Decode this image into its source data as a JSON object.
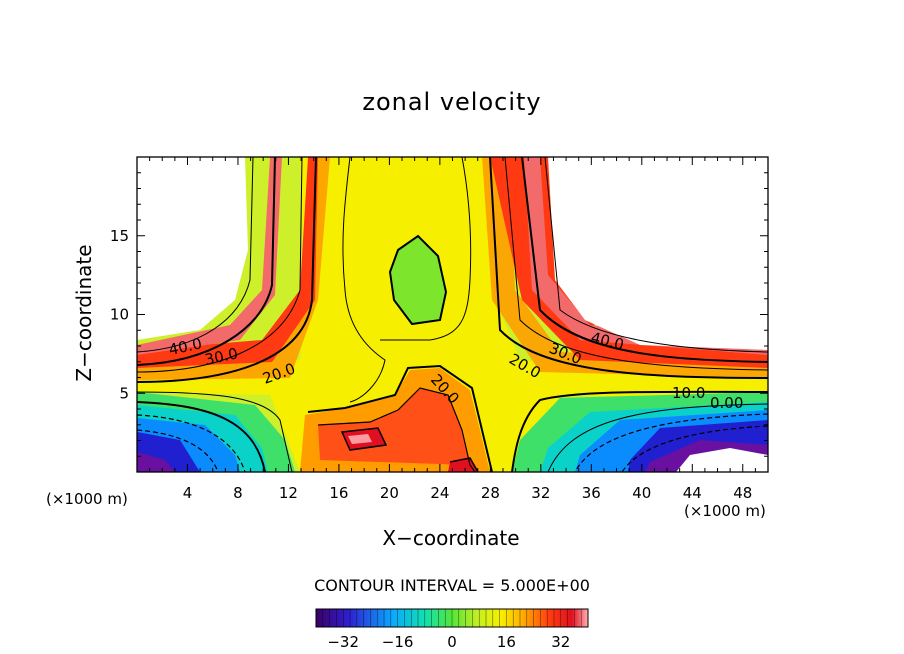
{
  "chart_data": {
    "type": "heatmap",
    "title": "zonal velocity",
    "xlabel": "X−coordinate",
    "ylabel": "Z−coordinate",
    "x_unit_left": "(×1000 m)",
    "x_unit_right": "(×1000 m)",
    "xlim": [
      0,
      50
    ],
    "ylim": [
      0,
      20
    ],
    "x_ticks": [
      4,
      8,
      12,
      16,
      20,
      24,
      28,
      32,
      36,
      40,
      44,
      48
    ],
    "y_ticks": [
      5,
      10,
      15
    ],
    "contour_interval_label": "CONTOUR INTERVAL = 5.000E+00",
    "contour_labels": [
      "40.0",
      "30.0",
      "20.0",
      "20.0",
      "20.0",
      "30.0",
      "40.0",
      "10.0",
      "0.00"
    ],
    "colorbar": {
      "min": -40,
      "max": 40,
      "ticks": [
        -32,
        -16,
        0,
        16,
        32
      ]
    },
    "grid": false,
    "legend": "colorbar-bottom"
  }
}
